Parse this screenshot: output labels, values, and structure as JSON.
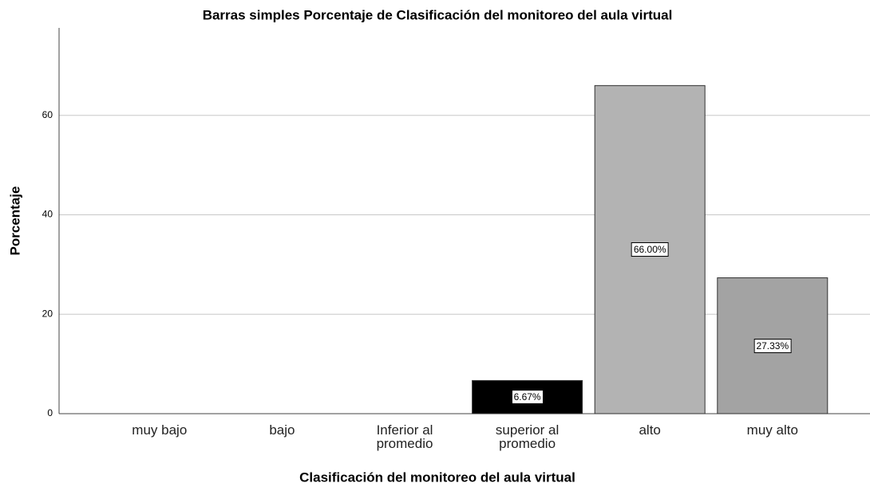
{
  "chart_data": {
    "type": "bar",
    "title": "Barras simples Porcentaje de Clasificación del monitoreo del aula virtual",
    "x_label": "Clasificación del monitoreo del aula virtual",
    "y_label": "Porcentaje",
    "categories": [
      "muy bajo",
      "bajo",
      "Inferior al promedio",
      "superior  al promedio",
      "alto",
      "muy alto"
    ],
    "values": [
      null,
      null,
      null,
      6.67,
      66,
      27.33
    ],
    "value_labels": [
      null,
      null,
      null,
      "6.67%",
      "66.00%",
      "27.33%"
    ],
    "colors": [
      null,
      null,
      null,
      "#000000",
      "#b3b3b3",
      "#a3a3a3"
    ],
    "ylim": [
      0,
      77.6
    ],
    "yticks": [
      0,
      20,
      40,
      60
    ],
    "grid": true
  }
}
